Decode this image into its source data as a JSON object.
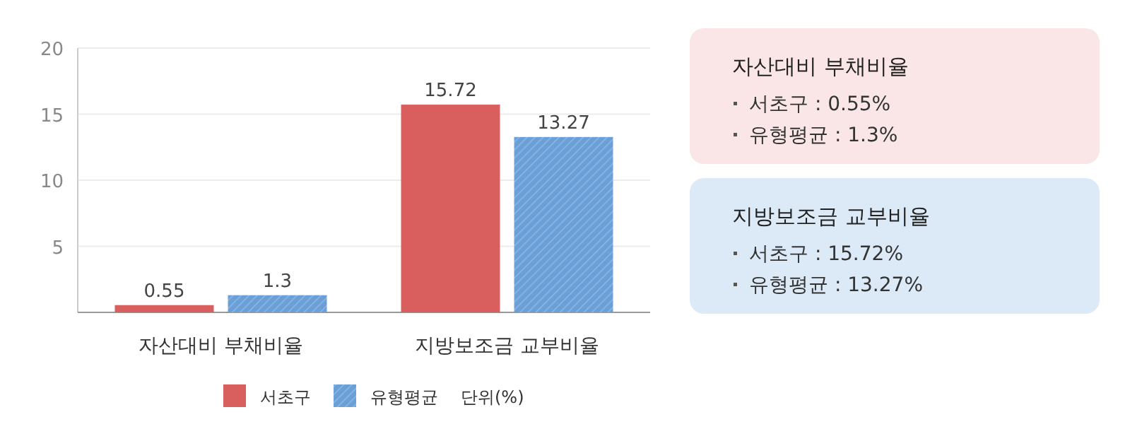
{
  "chart_data": [
    {
      "type": "bar",
      "categories": [
        "자산대비 부채비율",
        "지방보조금 교부비율"
      ],
      "series": [
        {
          "name": "서초구",
          "color": "#d95f5f",
          "values": [
            0.55,
            15.72
          ]
        },
        {
          "name": "유형평균",
          "color": "#6a9fd8",
          "values": [
            1.3,
            13.27
          ]
        }
      ],
      "ylim": [
        0,
        20
      ],
      "yticks": [
        5,
        10,
        15,
        20
      ],
      "grid": "y",
      "data_labels": true,
      "legend": "bottom",
      "annotations": [
        "단위(%)"
      ]
    },
    {
      "type": "other",
      "title": "자산대비 부채비율",
      "annotations": [
        "서초구 : 0.55%",
        "유형평균 : 1.3%"
      ]
    },
    {
      "type": "other",
      "title": "지방보조금 교부비율",
      "annotations": [
        "서초구 : 15.72%",
        "유형평균 : 13.27%"
      ]
    }
  ]
}
